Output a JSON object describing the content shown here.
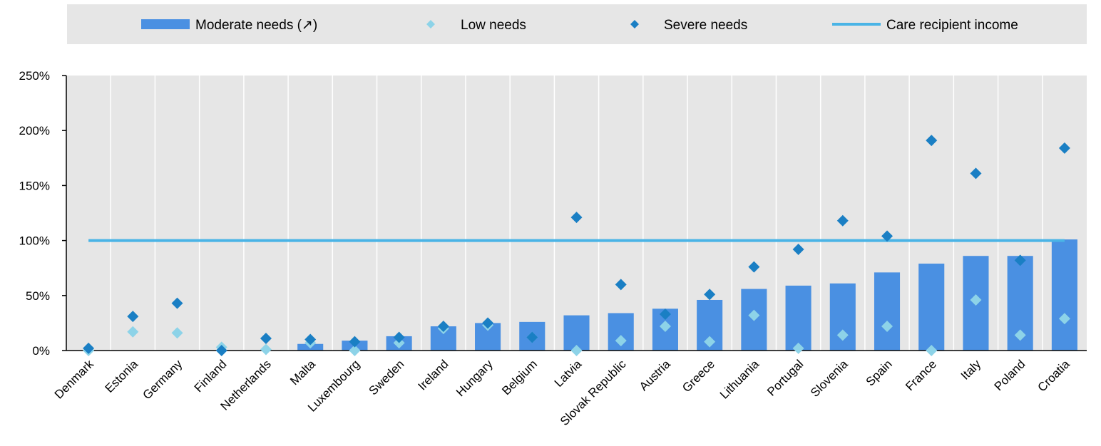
{
  "chart_data": {
    "type": "bar",
    "title": "",
    "xlabel": "",
    "ylabel": "",
    "ylim": [
      0,
      250
    ],
    "yticks": [
      "0%",
      "50%",
      "100%",
      "150%",
      "200%",
      "250%"
    ],
    "grid": "vertical",
    "legend_position": "top",
    "categories": [
      "Denmark",
      "Estonia",
      "Germany",
      "Finland",
      "Netherlands",
      "Malta",
      "Luxembourg",
      "Sweden",
      "Ireland",
      "Hungary",
      "Belgium",
      "Latvia",
      "Slovak Republic",
      "Austria",
      "Greece",
      "Lithuania",
      "Portugal",
      "Slovenia",
      "Spain",
      "France",
      "Italy",
      "Poland",
      "Croatia"
    ],
    "series": [
      {
        "name": "Moderate needs (↗)",
        "kind": "bar",
        "color": "#4a90e2",
        "values": [
          0,
          0,
          0,
          0,
          0,
          6,
          9,
          13,
          22,
          25,
          26,
          32,
          34,
          38,
          46,
          56,
          59,
          61,
          71,
          79,
          86,
          86,
          101
        ]
      },
      {
        "name": "Low needs",
        "kind": "marker",
        "color": "#8dd3e8",
        "values": [
          0,
          17,
          16,
          3,
          1,
          7,
          0,
          7,
          20,
          23,
          12,
          0,
          9,
          22,
          8,
          32,
          2,
          14,
          22,
          0,
          46,
          14,
          29
        ]
      },
      {
        "name": "Severe needs",
        "kind": "marker",
        "color": "#1a7fc4",
        "values": [
          2,
          31,
          43,
          0,
          11,
          10,
          8,
          12,
          22,
          25,
          12,
          121,
          60,
          33,
          51,
          76,
          92,
          118,
          104,
          191,
          161,
          82,
          184
        ]
      },
      {
        "name": "Care recipient income",
        "kind": "line",
        "color": "#4ab4e6",
        "value": 100
      }
    ]
  }
}
